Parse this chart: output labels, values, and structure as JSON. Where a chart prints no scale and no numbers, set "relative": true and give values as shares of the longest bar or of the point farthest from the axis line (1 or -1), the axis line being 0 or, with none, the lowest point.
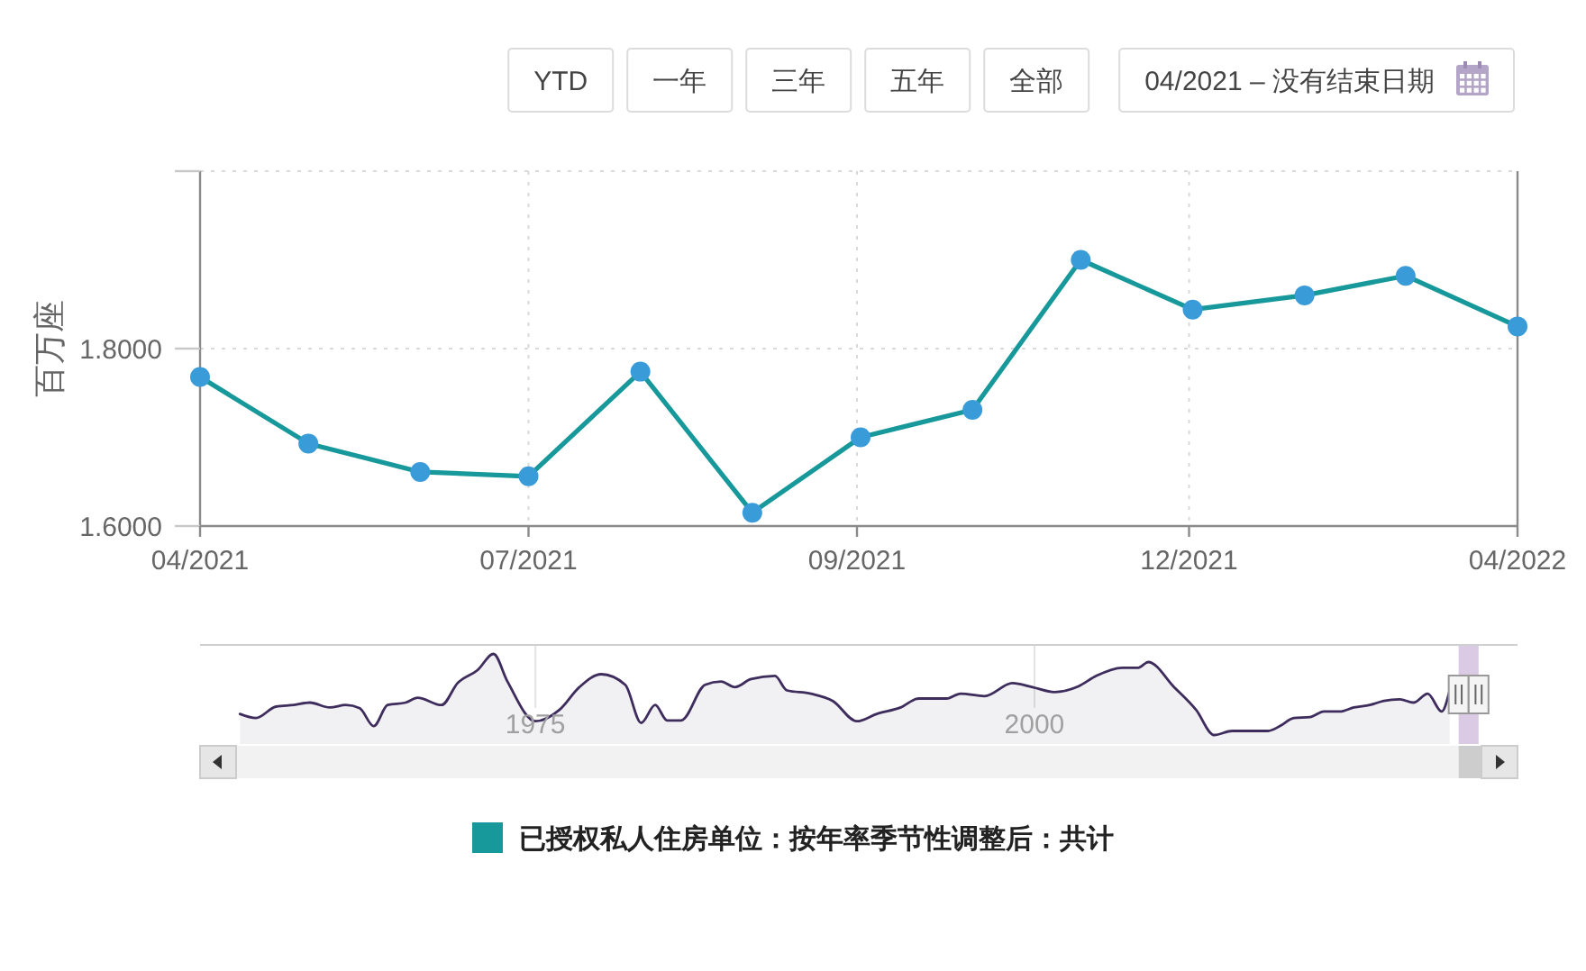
{
  "chart_data": [
    {
      "type": "line",
      "ylabel": "百万座",
      "annotations": [
        "YTD",
        "一年",
        "三年",
        "五年",
        "全部",
        "04/2021 – 没有结束日期"
      ],
      "x": [
        "2021-04",
        "2021-05",
        "2021-06",
        "2021-07",
        "2021-08",
        "2021-09",
        "2021-10",
        "2021-11",
        "2021-12",
        "2022-01",
        "2022-02",
        "2022-03",
        "2022-04"
      ],
      "series": [
        {
          "name": "已授权私人住房单位：按年率季节性调整后：共计",
          "color": "#17989b",
          "colors": [
            "#3a9bd9",
            "#3a9bd9",
            "#3a9bd9",
            "#3a9bd9",
            "#3a9bd9",
            "#3a9bd9",
            "#3a9bd9",
            "#3a9bd9",
            "#3a9bd9",
            "#3a9bd9",
            "#3a9bd9",
            "#3a9bd9",
            "#3a9bd9"
          ],
          "values": [
            1.768,
            1.693,
            1.661,
            1.656,
            1.774,
            1.615,
            1.7,
            1.731,
            1.9,
            1.844,
            1.86,
            1.882,
            1.825
          ]
        }
      ],
      "xlim": [
        "2021-04",
        "2022-04"
      ],
      "xticks": [
        {
          "value": "2021-04",
          "label": "04/2021"
        },
        {
          "value": "2021-07",
          "label": "07/2021"
        },
        {
          "value": "2021-09-30",
          "label": "09/2021"
        },
        {
          "value": "2021-12-31",
          "label": "12/2021"
        },
        {
          "value": "2022-04",
          "label": "04/2022"
        }
      ],
      "ylim": [
        1.6,
        2.0
      ],
      "yticks": [
        {
          "value": 1.6,
          "label": "1.6000"
        },
        {
          "value": 1.8,
          "label": "1.8000"
        },
        {
          "value": 2.0,
          "label": null
        }
      ],
      "grid": true,
      "legend": "bottom",
      "marker": "circle"
    },
    {
      "type": "area",
      "relative": true,
      "x": [
        1960.2,
        1961.0,
        1962.0,
        1962.9,
        1963.7,
        1964.7,
        1965.5,
        1966.2,
        1966.9,
        1967.6,
        1968.5,
        1969.1,
        1970.3,
        1971.1,
        1972.1,
        1972.9,
        1973.6,
        1975.0,
        1976.2,
        1977.2,
        1978.3,
        1979.5,
        1980.3,
        1981.0,
        1981.6,
        1982.3,
        1983.5,
        1984.3,
        1985.0,
        1985.8,
        1987.0,
        1987.6,
        1988.8,
        1989.9,
        1991.1,
        1992.1,
        1993.3,
        1994.2,
        1995.6,
        1996.3,
        1997.5,
        1998.9,
        1999.9,
        2001.0,
        2002.2,
        2003.1,
        2004.4,
        2005.2,
        2005.7,
        2007.0,
        2008.1,
        2009.0,
        2009.9,
        2011.7,
        2012.3,
        2013.0,
        2013.8,
        2014.5,
        2015.3,
        2016.0,
        2016.8,
        2017.5,
        2018.3,
        2019.0,
        2019.7,
        2020.4,
        2020.8
      ],
      "series": [
        {
          "color": "#3d2c5c",
          "values": [
            0.26,
            0.21,
            0.35,
            0.37,
            0.4,
            0.34,
            0.37,
            0.33,
            0.11,
            0.37,
            0.4,
            0.46,
            0.37,
            0.64,
            0.8,
            1,
            0.66,
            0.17,
            0.31,
            0.59,
            0.75,
            0.62,
            0.15,
            0.37,
            0.18,
            0.18,
            0.62,
            0.66,
            0.59,
            0.69,
            0.73,
            0.55,
            0.51,
            0.42,
            0.17,
            0.26,
            0.34,
            0.45,
            0.45,
            0.51,
            0.48,
            0.64,
            0.59,
            0.53,
            0.6,
            0.73,
            0.83,
            0.83,
            0.9,
            0.59,
            0.31,
            0,
            0.05,
            0.05,
            0.11,
            0.21,
            0.22,
            0.29,
            0.29,
            0.34,
            0.37,
            0.42,
            0.44,
            0.4,
            0.51,
            0.29,
            0.55
          ]
        }
      ],
      "xlim": [
        1958.2,
        2024.2
      ],
      "xticks": [
        1975,
        2000
      ],
      "grid": "x",
      "bands": [
        {
          "axis": "x",
          "from": 2021.25,
          "to": 2022.25,
          "color": "#d3c1df"
        }
      ]
    }
  ]
}
